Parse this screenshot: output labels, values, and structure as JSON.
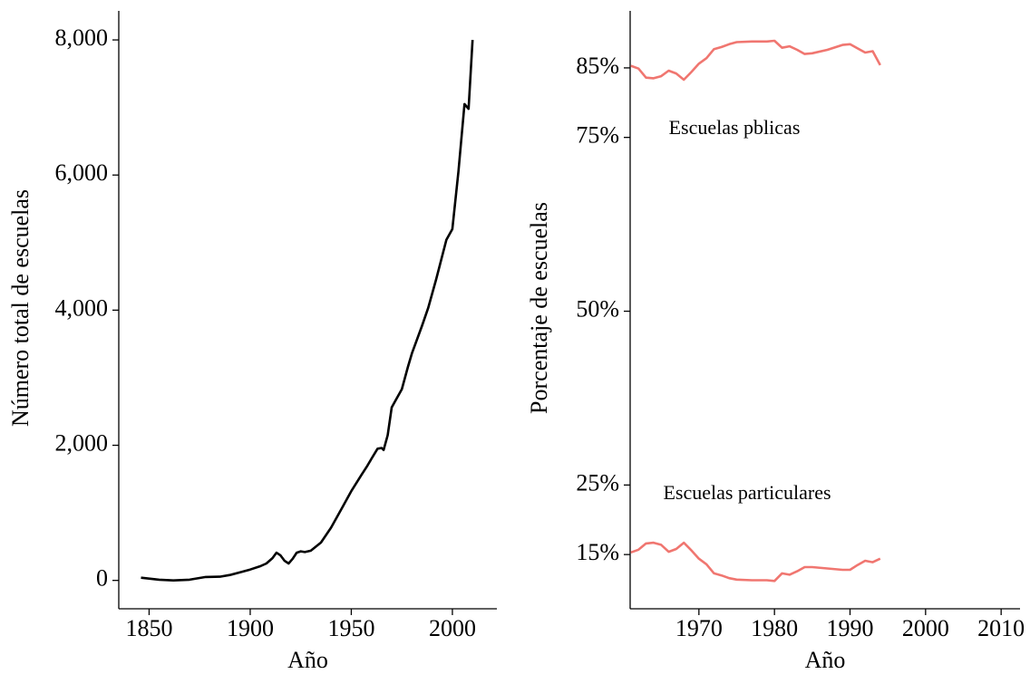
{
  "chart_data": [
    {
      "type": "line",
      "xlabel": "Año",
      "ylabel": "Número total de escuelas",
      "color": "#000000",
      "x": [
        1846,
        1855,
        1862,
        1870,
        1878,
        1885,
        1890,
        1895,
        1900,
        1905,
        1908,
        1911,
        1913,
        1915,
        1917,
        1919,
        1921,
        1923,
        1925,
        1927,
        1930,
        1935,
        1940,
        1945,
        1950,
        1955,
        1958,
        1960,
        1963,
        1965,
        1966,
        1968,
        1970,
        1972,
        1975,
        1978,
        1980,
        1985,
        1988,
        1992,
        1997,
        2000,
        2003,
        2006,
        2008,
        2010
      ],
      "values": [
        40,
        10,
        0,
        10,
        50,
        55,
        80,
        120,
        160,
        210,
        250,
        330,
        410,
        370,
        290,
        250,
        320,
        410,
        430,
        420,
        440,
        560,
        780,
        1050,
        1320,
        1560,
        1700,
        1800,
        1950,
        1960,
        1930,
        2150,
        2560,
        2670,
        2830,
        3160,
        3360,
        3770,
        4030,
        4460,
        5040,
        5200,
        6050,
        7050,
        6980,
        8000
      ],
      "xlim": [
        1835,
        2022
      ],
      "xticks": [
        1850,
        1900,
        1950,
        2000
      ],
      "ylim": [
        -420,
        8430
      ],
      "yticks": [
        0,
        {
          "value": 2000,
          "label": "2,000"
        },
        {
          "value": 4000,
          "label": "4,000"
        },
        {
          "value": 6000,
          "label": "6,000"
        },
        {
          "value": 8000,
          "label": "8,000"
        }
      ]
    },
    {
      "type": "line",
      "xlabel": "Año",
      "ylabel": "Porcentaje de escuelas",
      "x": [
        1961,
        1962,
        1963,
        1964,
        1965,
        1966,
        1967,
        1968,
        1969,
        1970,
        1971,
        1972,
        1973,
        1974,
        1975,
        1977,
        1979,
        1980,
        1981,
        1982,
        1983,
        1984,
        1985,
        1987,
        1989,
        1990,
        1991,
        1992,
        1993,
        1994
      ],
      "series": [
        {
          "name": "Escuelas pblicas",
          "color": "#f07670",
          "values": [
            85.3,
            84.9,
            83.6,
            83.5,
            83.8,
            84.6,
            84.2,
            83.3,
            84.4,
            85.6,
            86.4,
            87.7,
            88.0,
            88.4,
            88.7,
            88.8,
            88.8,
            88.9,
            87.9,
            88.1,
            87.6,
            87.0,
            87.1,
            87.6,
            88.3,
            88.4,
            87.8,
            87.2,
            87.4,
            85.4
          ]
        },
        {
          "name": "Escuelas particulares",
          "color": "#f07670",
          "values": [
            15.3,
            15.7,
            16.6,
            16.7,
            16.4,
            15.4,
            15.8,
            16.7,
            15.6,
            14.4,
            13.6,
            12.3,
            12.0,
            11.6,
            11.4,
            11.3,
            11.3,
            11.2,
            12.3,
            12.1,
            12.6,
            13.2,
            13.2,
            13.0,
            12.8,
            12.8,
            13.5,
            14.1,
            13.9,
            14.4
          ]
        }
      ],
      "xlim": [
        1960.9,
        2012.5
      ],
      "xticks": [
        1970,
        1980,
        1990,
        2000,
        2010
      ],
      "ylim": [
        7.2,
        93.2
      ],
      "yticks": [
        {
          "value": 15,
          "label": "15%"
        },
        {
          "value": 25,
          "label": "25%"
        },
        {
          "value": 50,
          "label": "50%"
        },
        {
          "value": 75,
          "label": "75%"
        },
        {
          "value": 85,
          "label": "85%"
        }
      ]
    }
  ]
}
